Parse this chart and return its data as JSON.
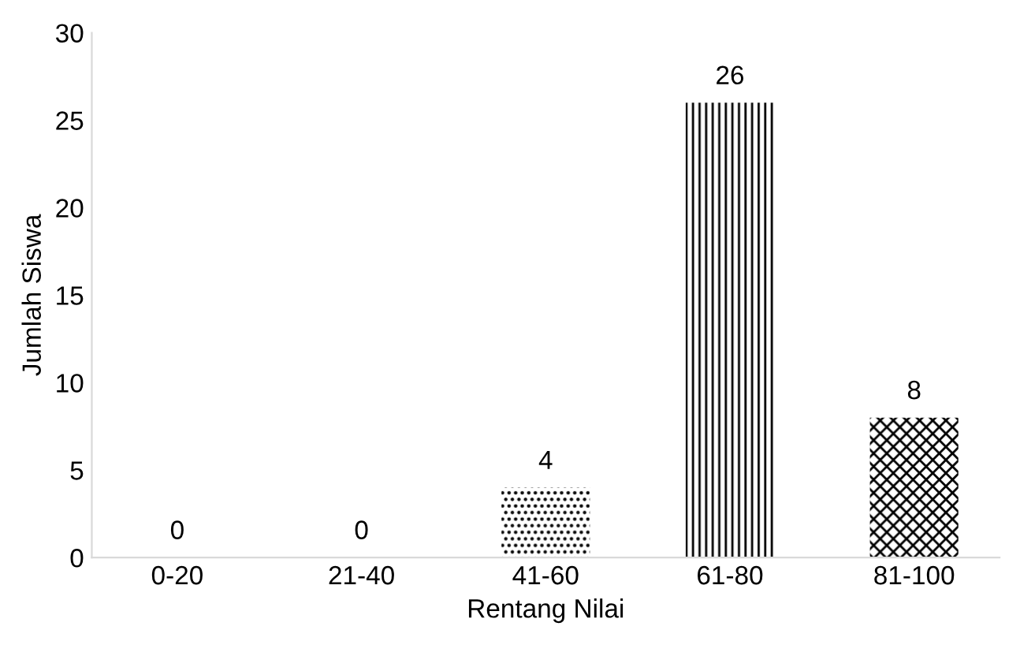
{
  "chart_data": {
    "type": "bar",
    "xlabel": "Rentang Nilai",
    "ylabel": "Jumlah Siswa",
    "categories": [
      "0-20",
      "21-40",
      "41-60",
      "61-80",
      "81-100"
    ],
    "values": [
      0,
      0,
      4,
      26,
      8
    ],
    "color": "#000000",
    "ylim": [
      0,
      30
    ],
    "yticks": [
      0,
      5,
      10,
      15,
      20,
      25,
      30
    ],
    "grid": false,
    "data_labels": true
  }
}
